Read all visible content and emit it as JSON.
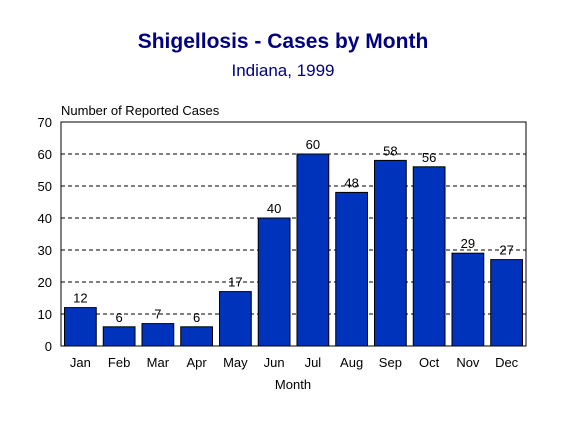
{
  "colors": {
    "title": "#000080",
    "bar_fill": "#0033BB",
    "bar_stroke": "#000000",
    "grid": "#000000",
    "background": "#ffffff"
  },
  "chart_data": {
    "type": "bar",
    "title": "Shigellosis - Cases by Month",
    "subtitle": "Indiana, 1999",
    "ylabel": "Number of Reported Cases",
    "xlabel": "Month",
    "categories": [
      "Jan",
      "Feb",
      "Mar",
      "Apr",
      "May",
      "Jun",
      "Jul",
      "Aug",
      "Sep",
      "Oct",
      "Nov",
      "Dec"
    ],
    "values": [
      12,
      6,
      7,
      6,
      17,
      40,
      60,
      48,
      58,
      56,
      29,
      27
    ],
    "ylim": [
      0,
      70
    ],
    "yticks": [
      0,
      10,
      20,
      30,
      40,
      50,
      60,
      70
    ],
    "grid": "horizontal dashed",
    "data_labels": true,
    "legend": "none"
  }
}
